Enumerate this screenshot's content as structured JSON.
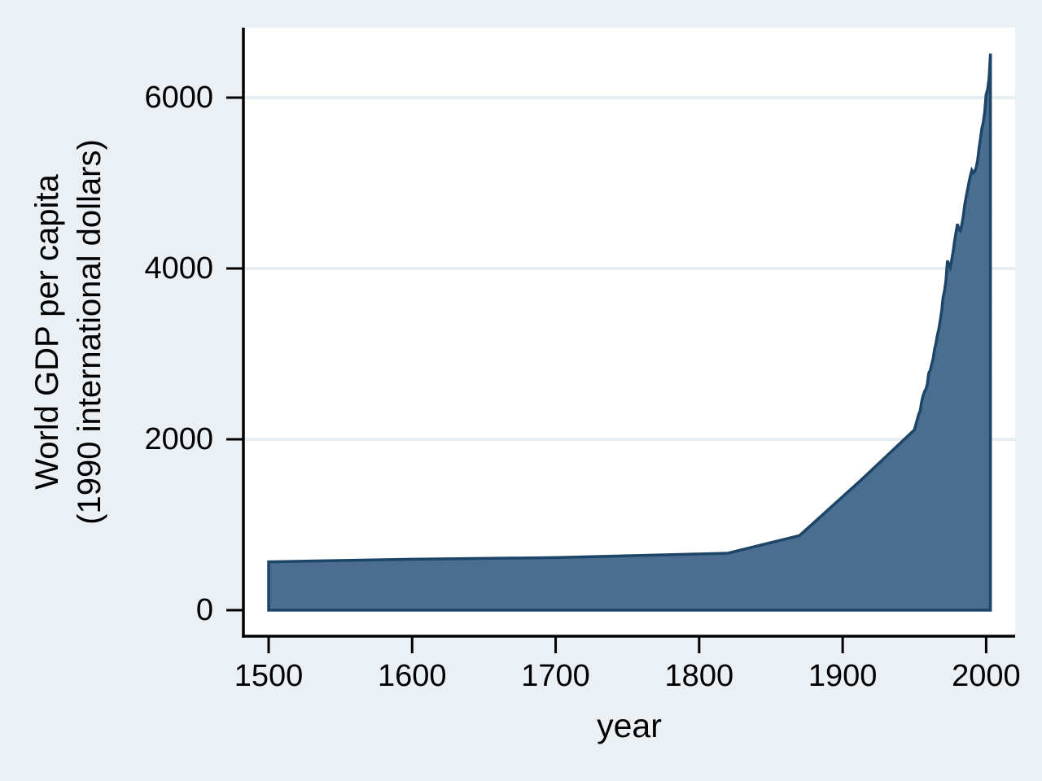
{
  "chart": {
    "background_color": "#EAF0F3",
    "plot_background_color": "#FFFFFF",
    "grid_color": "#E7EFF2",
    "area_fill_color": "#4A6D90",
    "area_line_color": "#1C4568",
    "axis_color": "#000000",
    "text_color": "#000000"
  },
  "chart_data": {
    "type": "area",
    "title": "",
    "xlabel": "year",
    "ylabel_line1": "World GDP per capita",
    "ylabel_line2": "(1990 international dollars)",
    "x_ticks": [
      1500,
      1600,
      1700,
      1800,
      1900,
      2000
    ],
    "y_ticks": [
      0,
      2000,
      4000,
      6000
    ],
    "xlim": [
      1500,
      2003
    ],
    "ylim": [
      0,
      6516
    ],
    "grid": true,
    "legend_position": "none",
    "series_name": "World GDP per capita (1990 international dollars)",
    "x": [
      1500,
      1600,
      1700,
      1820,
      1870,
      1913,
      1950,
      1951,
      1952,
      1953,
      1954,
      1955,
      1956,
      1957,
      1958,
      1959,
      1960,
      1961,
      1962,
      1963,
      1964,
      1965,
      1966,
      1967,
      1968,
      1969,
      1970,
      1971,
      1972,
      1973,
      1974,
      1975,
      1976,
      1977,
      1978,
      1979,
      1980,
      1981,
      1982,
      1983,
      1984,
      1985,
      1986,
      1987,
      1988,
      1989,
      1990,
      1991,
      1992,
      1993,
      1994,
      1995,
      1996,
      1997,
      1998,
      1999,
      2000,
      2001,
      2002,
      2003
    ],
    "y": [
      566,
      596,
      615,
      667,
      873,
      1526,
      2111,
      2172,
      2232,
      2291,
      2332,
      2437,
      2507,
      2555,
      2589,
      2646,
      2777,
      2808,
      2875,
      2942,
      3050,
      3123,
      3220,
      3290,
      3392,
      3507,
      3663,
      3741,
      3859,
      4091,
      4048,
      4010,
      4102,
      4203,
      4321,
      4425,
      4520,
      4458,
      4442,
      4510,
      4610,
      4740,
      4831,
      4920,
      5005,
      5085,
      5150,
      5120,
      5135,
      5180,
      5260,
      5404,
      5513,
      5640,
      5712,
      5833,
      6038,
      6095,
      6223,
      6516
    ]
  }
}
